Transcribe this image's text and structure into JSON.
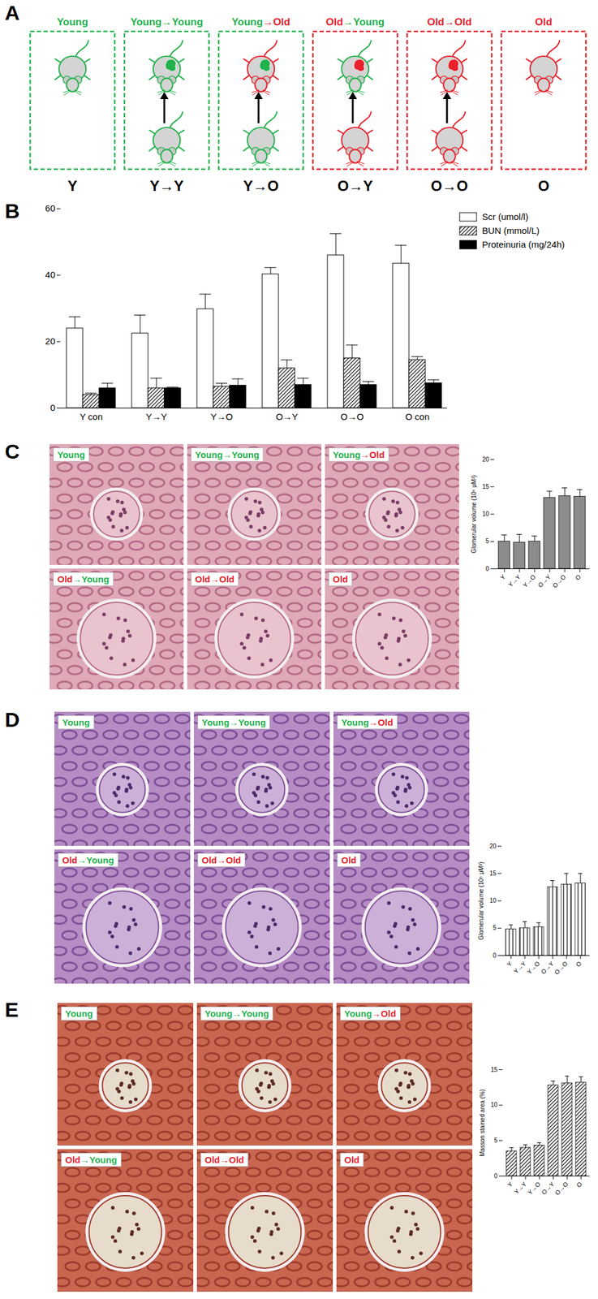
{
  "panel_labels": [
    "A",
    "B",
    "C",
    "D",
    "E"
  ],
  "group_colors": {
    "Young": "#22b24c",
    "Old": "#e8212b"
  },
  "diagram": {
    "boxes": [
      {
        "title": "Young",
        "code": "Y",
        "recipient": "Young",
        "donor": null
      },
      {
        "title": "Young→Young",
        "code": "Y→Y",
        "recipient": "Young",
        "donor": "Young"
      },
      {
        "title": "Young→Old",
        "code": "Y→O",
        "recipient": "Old",
        "donor": "Young"
      },
      {
        "title": "Old→Young",
        "code": "O→Y",
        "recipient": "Young",
        "donor": "Old"
      },
      {
        "title": "Old→Old",
        "code": "O→O",
        "recipient": "Old",
        "donor": "Old"
      },
      {
        "title": "Old",
        "code": "O",
        "recipient": "Old",
        "donor": null
      }
    ]
  },
  "chart_data": [
    {
      "type": "bar",
      "categories": [
        "Y con",
        "Y→Y",
        "Y→O",
        "O→Y",
        "O→O",
        "O con"
      ],
      "series": [
        {
          "name": "Scr (umol/l)",
          "color": "#ffffff",
          "values": [
            24,
            22.5,
            29.8,
            40.3,
            46,
            43.5
          ],
          "errors": [
            3.5,
            5.5,
            4.5,
            2,
            6.5,
            5.5
          ]
        },
        {
          "name": "BUN (mmol/L)",
          "color": "#ffffff",
          "line_style": "diagonal",
          "values": [
            4,
            6,
            6.5,
            12,
            15,
            14.5
          ],
          "errors": [
            0.5,
            3,
            1,
            2.5,
            4,
            1
          ]
        },
        {
          "name": "Proteinuria (mg/24h)",
          "color": "#000000",
          "values": [
            6,
            6,
            6.8,
            7,
            7,
            7.5
          ],
          "errors": [
            1.5,
            0.3,
            2,
            2,
            1,
            1
          ]
        }
      ],
      "ylim": [
        0,
        60
      ],
      "yticks": [
        0,
        20,
        40,
        60
      ],
      "legend": "top-right"
    },
    {
      "type": "bar",
      "categories": [
        "Y",
        "Y→Y",
        "Y→O",
        "O→Y",
        "O→O",
        "O"
      ],
      "values": [
        5,
        4.8,
        5,
        13,
        13.3,
        13.2
      ],
      "errors": [
        1.2,
        1.5,
        1,
        1.2,
        1.5,
        1.3
      ],
      "color": "#8c8c8c",
      "ylabel": "Glomerular volume (10⁵ μM³)",
      "ylim": [
        0,
        20
      ],
      "yticks": [
        0,
        5,
        10,
        15,
        20
      ]
    },
    {
      "type": "bar",
      "categories": [
        "Y",
        "Y→Y",
        "Y→O",
        "O→Y",
        "O→O",
        "O"
      ],
      "values": [
        4.8,
        5,
        5.2,
        12.5,
        13,
        13.2
      ],
      "errors": [
        0.8,
        1.2,
        0.8,
        1.2,
        2,
        1.8
      ],
      "color": "#ffffff",
      "line_style": "vertical",
      "ylabel": "Glomerular volume (10⁵ μM³)",
      "ylim": [
        0,
        20
      ],
      "yticks": [
        0,
        5,
        10,
        15,
        20
      ]
    },
    {
      "type": "bar",
      "categories": [
        "Y",
        "Y→Y",
        "Y→O",
        "O→Y",
        "O→O",
        "O"
      ],
      "values": [
        3.5,
        4,
        4.3,
        12.8,
        13.1,
        13.2
      ],
      "errors": [
        0.5,
        0.4,
        0.4,
        0.6,
        1,
        0.8
      ],
      "color": "#ffffff",
      "line_style": "diagonal",
      "ylabel": "Masson stained area (%)",
      "ylim": [
        0,
        15
      ],
      "yticks": [
        0,
        5,
        10,
        15
      ]
    }
  ],
  "micrographs": [
    [
      "Young",
      "Young→Young",
      "Young→Old",
      "Old→Young",
      "Old→Old",
      "Old"
    ],
    [
      "Young",
      "Young→Young",
      "Young→Old",
      "Old→Young",
      "Old→Old",
      "Old"
    ],
    [
      "Young",
      "Young→Young",
      "Young→Old",
      "Old→Young",
      "Old→Old",
      "Old"
    ]
  ]
}
